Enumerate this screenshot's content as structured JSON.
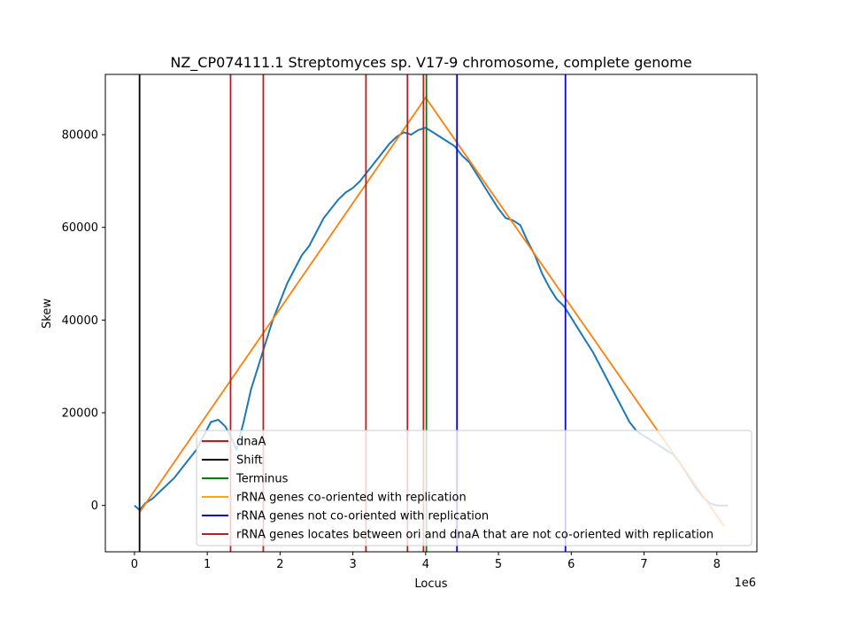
{
  "chart_data": {
    "type": "line",
    "title": "NZ_CP074111.1 Streptomyces sp. V17-9 chromosome, complete genome",
    "xlabel": "Locus",
    "ylabel": "Skew",
    "x_offset_text": "1e6",
    "xlim": [
      -400000,
      8550000
    ],
    "ylim": [
      -10000,
      93000
    ],
    "x_ticks": [
      0,
      1000000,
      2000000,
      3000000,
      4000000,
      5000000,
      6000000,
      7000000,
      8000000
    ],
    "x_tick_labels": [
      "0",
      "1",
      "2",
      "3",
      "4",
      "5",
      "6",
      "7",
      "8"
    ],
    "y_ticks": [
      0,
      20000,
      40000,
      60000,
      80000
    ],
    "y_tick_labels": [
      "0",
      "20000",
      "40000",
      "60000",
      "80000"
    ],
    "skew_series": {
      "color": "#1f77b4",
      "x": [
        0,
        70000,
        150000,
        250000,
        350000,
        450000,
        550000,
        650000,
        750000,
        850000,
        950000,
        1050000,
        1150000,
        1250000,
        1350000,
        1400000,
        1500000,
        1600000,
        1700000,
        1800000,
        1900000,
        2000000,
        2100000,
        2200000,
        2300000,
        2400000,
        2500000,
        2600000,
        2700000,
        2800000,
        2900000,
        3000000,
        3100000,
        3200000,
        3300000,
        3400000,
        3500000,
        3600000,
        3700000,
        3800000,
        3900000,
        4000000,
        4100000,
        4200000,
        4300000,
        4400000,
        4500000,
        4600000,
        4700000,
        4800000,
        4900000,
        5000000,
        5100000,
        5200000,
        5300000,
        5400000,
        5500000,
        5600000,
        5700000,
        5800000,
        5900000,
        6000000,
        6100000,
        6200000,
        6300000,
        6400000,
        6500000,
        6600000,
        6700000,
        6800000,
        6900000,
        7000000,
        7100000,
        7200000,
        7300000,
        7400000,
        7500000,
        7600000,
        7700000,
        7800000,
        7900000,
        8000000,
        8100000,
        8150000
      ],
      "y": [
        0,
        -1000,
        500,
        1500,
        3000,
        4500,
        6000,
        8000,
        10000,
        12000,
        15000,
        18000,
        18500,
        17000,
        14000,
        12000,
        18000,
        25000,
        30000,
        35000,
        40000,
        44000,
        48000,
        51000,
        54000,
        56000,
        59000,
        62000,
        64000,
        66000,
        67500,
        68500,
        70000,
        72000,
        74000,
        76000,
        78000,
        79500,
        80500,
        80000,
        81000,
        81500,
        80500,
        79500,
        78500,
        77500,
        75500,
        74000,
        71500,
        69000,
        66500,
        64000,
        62000,
        61500,
        60500,
        57000,
        54000,
        50000,
        47000,
        44500,
        43000,
        40500,
        38000,
        35500,
        33000,
        30000,
        27000,
        24000,
        21000,
        18000,
        16000,
        15000,
        14000,
        13000,
        12000,
        11000,
        9000,
        6500,
        4000,
        2000,
        500,
        0,
        0,
        0
      ]
    },
    "orange_series": {
      "color": "#ff7f0e",
      "x": [
        70000,
        4000000,
        8100000
      ],
      "y": [
        -1500,
        88000,
        -4500
      ]
    },
    "vlines": [
      {
        "x": 70000,
        "color": "#000000"
      },
      {
        "x": 1320000,
        "color": "#b22222"
      },
      {
        "x": 1770000,
        "color": "#b22222"
      },
      {
        "x": 3180000,
        "color": "#b22222"
      },
      {
        "x": 3750000,
        "color": "#b22222"
      },
      {
        "x": 3970000,
        "color": "#b22222"
      },
      {
        "x": 4010000,
        "color": "#008000"
      },
      {
        "x": 4430000,
        "color": "#0000ff"
      },
      {
        "x": 5920000,
        "color": "#0000ff"
      }
    ],
    "legend": {
      "position": "lower-right",
      "entries": [
        {
          "label": "dnaA",
          "color": "#ff0000"
        },
        {
          "label": "Shift",
          "color": "#000000"
        },
        {
          "label": "Terminus",
          "color": "#008000"
        },
        {
          "label": "rRNA genes co-oriented with replication",
          "color": "#ffa500"
        },
        {
          "label": "rRNA genes not co-oriented with replication",
          "color": "#0000ff"
        },
        {
          "label": "rRNA genes locates between ori and dnaA that are not co-oriented with replication",
          "color": "#b22222"
        }
      ]
    }
  }
}
